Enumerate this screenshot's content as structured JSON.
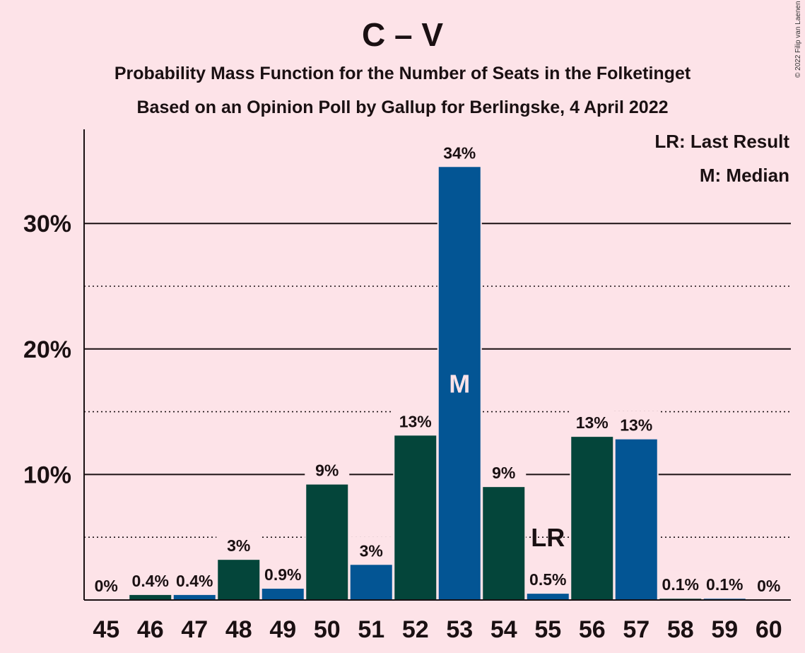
{
  "title": "C – V",
  "subtitle1": "Probability Mass Function for the Number of Seats in the Folketinget",
  "subtitle2": "Based on an Opinion Poll by Gallup for Berlingske, 4 April 2022",
  "copyright": "© 2022 Filip van Laenen",
  "legend": [
    "LR: Last Result",
    "M: Median"
  ],
  "colors": {
    "dark_green": "#04453a",
    "blue": "#035594",
    "background": "#fde3e8"
  },
  "chart_data": {
    "type": "bar",
    "categories": [
      "45",
      "46",
      "47",
      "48",
      "49",
      "50",
      "51",
      "52",
      "53",
      "54",
      "55",
      "56",
      "57",
      "58",
      "59",
      "60"
    ],
    "values": [
      0,
      0.4,
      0.4,
      3.2,
      0.9,
      9.2,
      2.8,
      13.1,
      34.5,
      9.0,
      0.5,
      13.0,
      12.8,
      0.1,
      0.1,
      0
    ],
    "labels": [
      "0%",
      "0.4%",
      "0.4%",
      "3%",
      "0.9%",
      "9%",
      "3%",
      "13%",
      "34%",
      "9%",
      "0.5%",
      "13%",
      "13%",
      "0.1%",
      "0.1%",
      "0%"
    ],
    "colors": [
      "dark_green",
      "dark_green",
      "blue",
      "dark_green",
      "blue",
      "dark_green",
      "blue",
      "dark_green",
      "blue",
      "dark_green",
      "blue",
      "dark_green",
      "blue",
      "dark_green",
      "blue",
      "dark_green"
    ],
    "ylim": [
      0,
      37.5
    ],
    "yticks": [
      {
        "value": 10,
        "label": "10%"
      },
      {
        "value": 20,
        "label": "20%"
      },
      {
        "value": 30,
        "label": "30%"
      }
    ],
    "minor_gridlines": [
      5,
      15,
      25
    ],
    "median": {
      "category": "53",
      "label": "M"
    },
    "last_result": {
      "category": "55",
      "label": "LR",
      "value": 5
    },
    "xlabel": "",
    "ylabel": ""
  }
}
